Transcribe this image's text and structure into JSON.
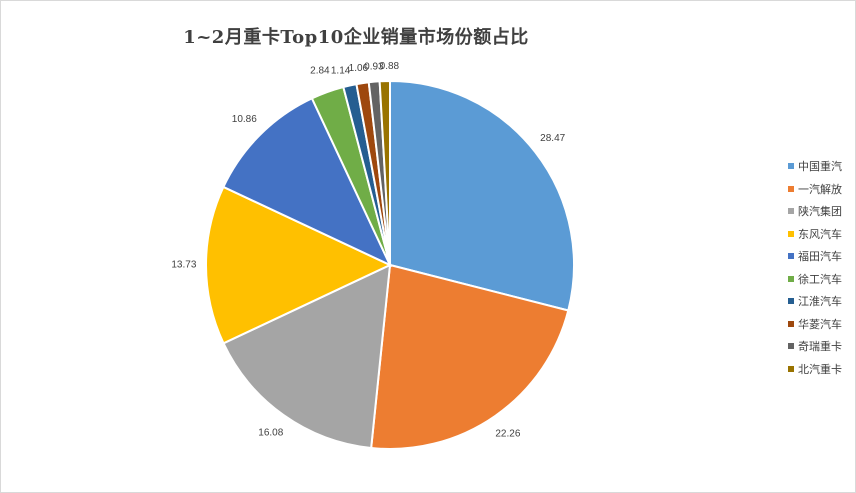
{
  "chart_data": {
    "type": "pie",
    "title": "1~2月重卡Top10企业销量市场份额占比",
    "legend_position": "right",
    "series": [
      {
        "name": "中国重汽",
        "value": 28.47,
        "label": "28.47",
        "color": "#5B9BD5"
      },
      {
        "name": "一汽解放",
        "value": 22.26,
        "label": "22.26",
        "color": "#ED7D31"
      },
      {
        "name": "陕汽集团",
        "value": 16.08,
        "label": "16.08",
        "color": "#A5A5A5"
      },
      {
        "name": "东风汽车",
        "value": 13.73,
        "label": "13.73",
        "color": "#FFC000"
      },
      {
        "name": "福田汽车",
        "value": 10.86,
        "label": "10.86",
        "color": "#4472C4"
      },
      {
        "name": "徐工汽车",
        "value": 2.84,
        "label": "2.84",
        "color": "#70AD47"
      },
      {
        "name": "江淮汽车",
        "value": 1.14,
        "label": "1.14",
        "color": "#255E91"
      },
      {
        "name": "华菱汽车",
        "value": 1.06,
        "label": "1.06",
        "color": "#9E480E"
      },
      {
        "name": "奇瑞重卡",
        "value": 0.93,
        "label": "0.93",
        "color": "#636363"
      },
      {
        "name": "北汽重卡",
        "value": 0.88,
        "label": "0.88",
        "color": "#997300"
      }
    ]
  }
}
